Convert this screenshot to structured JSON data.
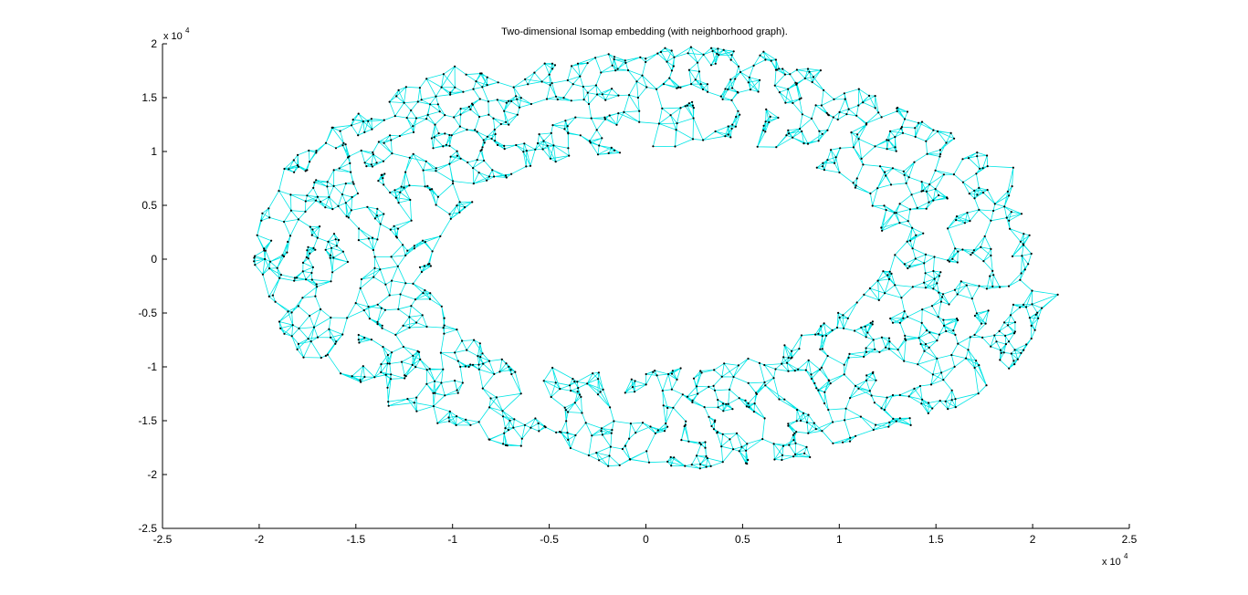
{
  "chart_data": {
    "type": "scatter",
    "title": "Two-dimensional Isomap embedding (with neighborhood graph).",
    "xlabel": "",
    "ylabel": "",
    "xlim": [
      -25000,
      25000
    ],
    "ylim": [
      -25000,
      20000
    ],
    "x_ticks": [
      -25000,
      -20000,
      -15000,
      -10000,
      -5000,
      0,
      5000,
      10000,
      15000,
      20000,
      25000
    ],
    "x_tick_labels": [
      "-2.5",
      "-2",
      "-1.5",
      "-1",
      "-0.5",
      "0",
      "0.5",
      "1",
      "1.5",
      "2",
      "2.5"
    ],
    "y_ticks": [
      -25000,
      -20000,
      -15000,
      -10000,
      -5000,
      0,
      5000,
      10000,
      15000,
      20000
    ],
    "y_tick_labels": [
      "-2.5",
      "-2",
      "-1.5",
      "-1",
      "-0.5",
      "0",
      "0.5",
      "1",
      "1.5",
      "2"
    ],
    "x_multiplier": {
      "base": "x 10",
      "exponent": "4"
    },
    "y_multiplier": {
      "base": "x 10",
      "exponent": "4"
    },
    "grid": false,
    "legend": "none",
    "colors": {
      "edges": "#00e5e5",
      "points": "#000000",
      "axes": "#000000"
    },
    "inner_boundary": [
      [
        -11000,
        0
      ],
      [
        -10200,
        3500
      ],
      [
        -8000,
        6500
      ],
      [
        -4500,
        8800
      ],
      [
        0,
        10300
      ],
      [
        4500,
        10500
      ],
      [
        8000,
        9200
      ],
      [
        10500,
        6500
      ],
      [
        11800,
        3000
      ],
      [
        12000,
        0
      ],
      [
        11200,
        -3000
      ],
      [
        9200,
        -5800
      ],
      [
        6000,
        -8300
      ],
      [
        2000,
        -10000
      ],
      [
        -2500,
        -10500
      ],
      [
        -6500,
        -9500
      ],
      [
        -9200,
        -7000
      ],
      [
        -10800,
        -3800
      ]
    ],
    "outer_boundary": [
      [
        -20500,
        1500
      ],
      [
        -20000,
        -3500
      ],
      [
        -19000,
        -7500
      ],
      [
        -16500,
        -11000
      ],
      [
        -13500,
        -13500
      ],
      [
        -10500,
        -15500
      ],
      [
        -7000,
        -17500
      ],
      [
        -3500,
        -19000
      ],
      [
        0,
        -20000
      ],
      [
        4500,
        -19500
      ],
      [
        8500,
        -18500
      ],
      [
        12000,
        -16500
      ],
      [
        15000,
        -15000
      ],
      [
        17500,
        -12500
      ],
      [
        19500,
        -9000
      ],
      [
        20500,
        -5500
      ],
      [
        21300,
        -3300
      ],
      [
        20000,
        -1500
      ],
      [
        20300,
        1500
      ],
      [
        19200,
        5000
      ],
      [
        18800,
        8500
      ],
      [
        15500,
        12500
      ],
      [
        11000,
        16500
      ],
      [
        7000,
        19500
      ],
      [
        3000,
        20000
      ],
      [
        -2000,
        19300
      ],
      [
        -6500,
        18500
      ],
      [
        -10500,
        18000
      ],
      [
        -13500,
        15500
      ],
      [
        -16500,
        12000
      ],
      [
        -19000,
        8500
      ]
    ],
    "tail_points": [
      [
        21300,
        -3300
      ],
      [
        19000,
        8500
      ]
    ],
    "point_count": 1400,
    "graph_neighbors": 4
  }
}
